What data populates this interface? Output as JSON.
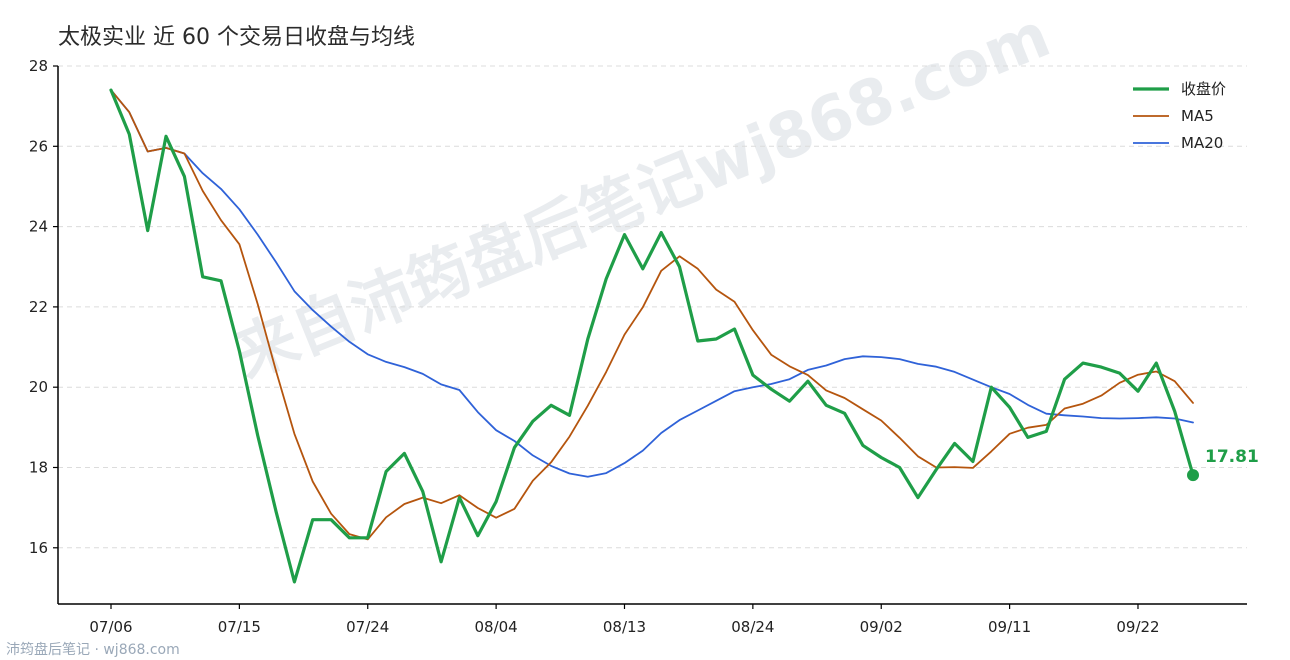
{
  "chart_data": {
    "type": "line",
    "title": "太极实业 近 60 个交易日收盘与均线",
    "xlabel": "",
    "ylabel": "",
    "ylim": [
      14.6,
      28
    ],
    "yticks": [
      16,
      18,
      20,
      22,
      24,
      26,
      28
    ],
    "grid": "horizontal dashed",
    "legend_position": "top-right",
    "x_tick_labels": [
      "07/06",
      "07/15",
      "07/24",
      "08/04",
      "08/13",
      "08/24",
      "09/02",
      "09/11",
      "09/22"
    ],
    "x_tick_indices": [
      0,
      7,
      14,
      21,
      28,
      35,
      42,
      49,
      56
    ],
    "n_points": 60,
    "series": [
      {
        "name": "收盘价",
        "color": "#1f9e48",
        "values": [
          27.4,
          26.3,
          23.9,
          26.25,
          25.25,
          22.75,
          22.65,
          20.9,
          18.8,
          16.9,
          15.15,
          16.7,
          16.7,
          16.25,
          16.25,
          17.9,
          18.35,
          17.4,
          15.65,
          17.25,
          16.3,
          17.15,
          18.5,
          19.15,
          19.55,
          19.3,
          21.2,
          22.7,
          23.8,
          22.95,
          23.85,
          23.0,
          21.15,
          21.2,
          21.45,
          20.3,
          19.95,
          19.65,
          20.15,
          19.55,
          19.35,
          18.55,
          18.25,
          18.0,
          17.25,
          17.95,
          18.6,
          18.15,
          20.0,
          19.5,
          18.75,
          18.9,
          20.2,
          20.6,
          20.5,
          20.35,
          19.9,
          20.6,
          19.4,
          17.81
        ]
      },
      {
        "name": "MA5",
        "color": "#b5550e",
        "values": [
          27.4,
          26.85,
          25.87,
          25.96,
          25.82,
          24.89,
          24.16,
          23.56,
          22.07,
          20.4,
          18.84,
          17.65,
          16.85,
          16.34,
          16.21,
          16.76,
          17.09,
          17.25,
          17.11,
          17.31,
          16.99,
          16.75,
          16.97,
          17.67,
          18.13,
          18.77,
          19.54,
          20.38,
          21.31,
          21.99,
          22.9,
          23.26,
          22.95,
          22.43,
          22.13,
          21.42,
          20.81,
          20.52,
          20.3,
          19.92,
          19.73,
          19.45,
          19.17,
          18.74,
          18.28,
          18.0,
          18.01,
          17.99,
          18.4,
          18.84,
          18.99,
          19.06,
          19.47,
          19.59,
          19.79,
          20.11,
          20.31,
          20.39,
          20.15,
          19.61
        ]
      },
      {
        "name": "MA20",
        "color": "#2f62d8",
        "values": [
          27.4,
          26.85,
          25.87,
          25.96,
          25.82,
          25.33,
          24.94,
          24.43,
          23.8,
          23.11,
          22.39,
          21.92,
          21.51,
          21.13,
          20.82,
          20.63,
          20.5,
          20.33,
          20.07,
          19.93,
          19.38,
          18.93,
          18.66,
          18.3,
          18.04,
          17.85,
          17.77,
          17.86,
          18.11,
          18.42,
          18.86,
          19.18,
          19.42,
          19.66,
          19.9,
          20.0,
          20.08,
          20.2,
          20.43,
          20.54,
          20.7,
          20.77,
          20.75,
          20.7,
          20.58,
          20.51,
          20.38,
          20.19,
          20.0,
          19.83,
          19.56,
          19.34,
          19.3,
          19.27,
          19.23,
          19.22,
          19.23,
          19.25,
          19.22,
          19.12
        ]
      }
    ],
    "last_close_label": "17.81"
  },
  "footer": "沛筠盘后笔记 · wj868.com",
  "watermark": "来自沛筠盘后笔记wj868.com"
}
